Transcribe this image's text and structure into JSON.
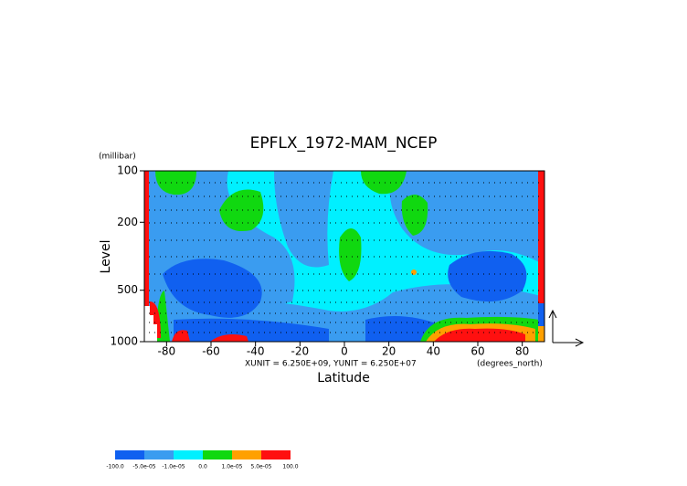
{
  "chart_data": {
    "type": "contour",
    "title": "EPFLX_1972-MAM_NCEP",
    "y_label": "Level",
    "y_unit": "(millibar)",
    "x_label": "Latitude",
    "x_unit": "(degrees_north)",
    "note": "XUNIT = 6.250E+09, YUNIT = 6.250E+07",
    "xlim": [
      -90,
      90
    ],
    "xticks": [
      -80,
      -60,
      -40,
      -20,
      0,
      20,
      40,
      60,
      80
    ],
    "ylim": [
      1000,
      100
    ],
    "yticks": [
      100,
      200,
      500,
      1000
    ],
    "y_scale": "log",
    "colorbar": {
      "levels": [
        {
          "value": -100,
          "label": "-100.0"
        },
        {
          "value": -5e-05,
          "label": "-5.0e-05"
        },
        {
          "value": -1e-05,
          "label": "-1.0e-05"
        },
        {
          "value": 0,
          "label": "0.0"
        },
        {
          "value": 1e-05,
          "label": "1.0e-05"
        },
        {
          "value": 5e-05,
          "label": "5.0e-05"
        },
        {
          "value": 100,
          "label": "100.0"
        }
      ],
      "colors": [
        "#1060f0",
        "#3a9cf0",
        "#00f0ff",
        "#10d810",
        "#ffa000",
        "#ff1010"
      ]
    }
  }
}
